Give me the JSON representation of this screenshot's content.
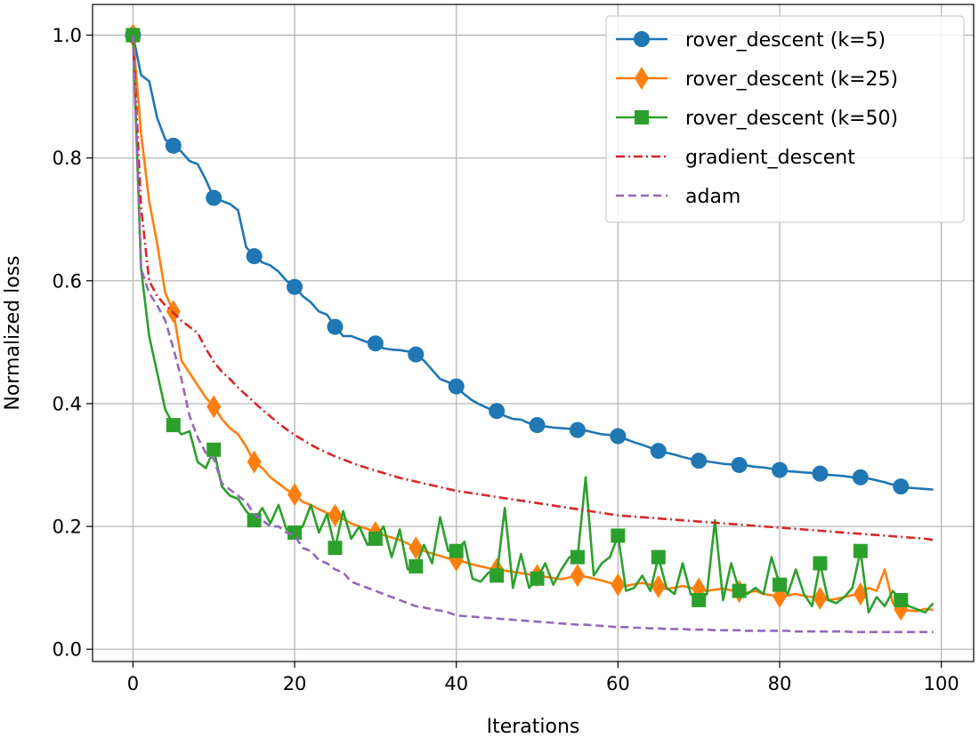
{
  "chart_data": {
    "type": "line",
    "title": "",
    "xlabel": "Iterations",
    "ylabel": "Normalized loss",
    "xlim": [
      -5,
      104
    ],
    "ylim": [
      -0.02,
      1.05
    ],
    "xticks": [
      0,
      20,
      40,
      60,
      80,
      100
    ],
    "yticks": [
      0.0,
      0.2,
      0.4,
      0.6,
      0.8,
      1.0
    ],
    "xtick_labels": [
      "0",
      "20",
      "40",
      "60",
      "80",
      "100"
    ],
    "ytick_labels": [
      "0.0",
      "0.2",
      "0.4",
      "0.6",
      "0.8",
      "1.0"
    ],
    "grid": true,
    "legend_position": "top-right",
    "series": [
      {
        "name": "rover_descent (k=5)",
        "color": "#1f77b4",
        "line_style": "solid",
        "marker": "circle",
        "markevery": 5,
        "x": [
          0,
          1,
          2,
          3,
          4,
          5,
          6,
          7,
          8,
          9,
          10,
          11,
          12,
          13,
          14,
          15,
          16,
          17,
          18,
          19,
          20,
          21,
          22,
          23,
          24,
          25,
          26,
          27,
          28,
          29,
          30,
          31,
          32,
          33,
          34,
          35,
          36,
          37,
          38,
          39,
          40,
          41,
          42,
          43,
          44,
          45,
          46,
          47,
          48,
          49,
          50,
          51,
          52,
          53,
          54,
          55,
          56,
          57,
          58,
          59,
          60,
          61,
          62,
          63,
          64,
          65,
          66,
          67,
          68,
          69,
          70,
          71,
          72,
          73,
          74,
          75,
          76,
          77,
          78,
          79,
          80,
          81,
          82,
          83,
          84,
          85,
          86,
          87,
          88,
          89,
          90,
          91,
          92,
          93,
          94,
          95,
          96,
          97,
          98,
          99
        ],
        "y": [
          1.0,
          0.935,
          0.925,
          0.865,
          0.83,
          0.82,
          0.81,
          0.795,
          0.79,
          0.765,
          0.735,
          0.73,
          0.725,
          0.715,
          0.655,
          0.64,
          0.63,
          0.625,
          0.615,
          0.6,
          0.59,
          0.575,
          0.565,
          0.55,
          0.545,
          0.525,
          0.51,
          0.51,
          0.505,
          0.5,
          0.498,
          0.49,
          0.488,
          0.487,
          0.485,
          0.48,
          0.47,
          0.455,
          0.44,
          0.435,
          0.428,
          0.415,
          0.405,
          0.398,
          0.392,
          0.388,
          0.38,
          0.375,
          0.374,
          0.368,
          0.365,
          0.363,
          0.361,
          0.36,
          0.359,
          0.357,
          0.356,
          0.353,
          0.35,
          0.349,
          0.347,
          0.342,
          0.337,
          0.333,
          0.328,
          0.323,
          0.32,
          0.317,
          0.313,
          0.31,
          0.307,
          0.306,
          0.304,
          0.302,
          0.301,
          0.3,
          0.299,
          0.297,
          0.296,
          0.294,
          0.292,
          0.29,
          0.289,
          0.288,
          0.287,
          0.286,
          0.284,
          0.283,
          0.282,
          0.28,
          0.28,
          0.278,
          0.275,
          0.272,
          0.268,
          0.265,
          0.263,
          0.262,
          0.261,
          0.26
        ]
      },
      {
        "name": "rover_descent (k=25)",
        "color": "#ff7f0e",
        "line_style": "solid",
        "marker": "diamond",
        "markevery": 5,
        "x": [
          0,
          1,
          2,
          3,
          4,
          5,
          6,
          7,
          8,
          9,
          10,
          11,
          12,
          13,
          14,
          15,
          16,
          17,
          18,
          19,
          20,
          21,
          22,
          23,
          24,
          25,
          26,
          27,
          28,
          29,
          30,
          31,
          32,
          33,
          34,
          35,
          36,
          37,
          38,
          39,
          40,
          41,
          42,
          43,
          44,
          45,
          46,
          47,
          48,
          49,
          50,
          51,
          52,
          53,
          54,
          55,
          56,
          57,
          58,
          59,
          60,
          61,
          62,
          63,
          64,
          65,
          66,
          67,
          68,
          69,
          70,
          71,
          72,
          73,
          74,
          75,
          76,
          77,
          78,
          79,
          80,
          81,
          82,
          83,
          84,
          85,
          86,
          87,
          88,
          89,
          90,
          91,
          92,
          93,
          94,
          95,
          96,
          97,
          98,
          99
        ],
        "y": [
          1.0,
          0.84,
          0.73,
          0.66,
          0.58,
          0.55,
          0.47,
          0.45,
          0.43,
          0.41,
          0.395,
          0.375,
          0.36,
          0.35,
          0.33,
          0.305,
          0.295,
          0.28,
          0.27,
          0.26,
          0.252,
          0.24,
          0.235,
          0.228,
          0.222,
          0.218,
          0.212,
          0.205,
          0.2,
          0.196,
          0.19,
          0.186,
          0.182,
          0.178,
          0.172,
          0.165,
          0.16,
          0.156,
          0.152,
          0.148,
          0.145,
          0.142,
          0.138,
          0.135,
          0.132,
          0.13,
          0.128,
          0.126,
          0.124,
          0.122,
          0.12,
          0.118,
          0.116,
          0.114,
          0.117,
          0.12,
          0.118,
          0.115,
          0.112,
          0.108,
          0.105,
          0.103,
          0.106,
          0.108,
          0.105,
          0.102,
          0.098,
          0.1,
          0.103,
          0.1,
          0.098,
          0.095,
          0.097,
          0.099,
          0.096,
          0.094,
          0.092,
          0.095,
          0.09,
          0.088,
          0.086,
          0.088,
          0.09,
          0.087,
          0.085,
          0.083,
          0.08,
          0.082,
          0.085,
          0.088,
          0.09,
          0.1,
          0.095,
          0.13,
          0.075,
          0.065,
          0.063,
          0.062,
          0.066,
          0.064
        ]
      },
      {
        "name": "rover_descent (k=50)",
        "color": "#2ca02c",
        "line_style": "solid",
        "marker": "square",
        "markevery": 5,
        "x": [
          0,
          1,
          2,
          3,
          4,
          5,
          6,
          7,
          8,
          9,
          10,
          11,
          12,
          13,
          14,
          15,
          16,
          17,
          18,
          19,
          20,
          21,
          22,
          23,
          24,
          25,
          26,
          27,
          28,
          29,
          30,
          31,
          32,
          33,
          34,
          35,
          36,
          37,
          38,
          39,
          40,
          41,
          42,
          43,
          44,
          45,
          46,
          47,
          48,
          49,
          50,
          51,
          52,
          53,
          54,
          55,
          56,
          57,
          58,
          59,
          60,
          61,
          62,
          63,
          64,
          65,
          66,
          67,
          68,
          69,
          70,
          71,
          72,
          73,
          74,
          75,
          76,
          77,
          78,
          79,
          80,
          81,
          82,
          83,
          84,
          85,
          86,
          87,
          88,
          89,
          90,
          91,
          92,
          93,
          94,
          95,
          96,
          97,
          98,
          99
        ],
        "y": [
          1.0,
          0.62,
          0.51,
          0.45,
          0.39,
          0.365,
          0.35,
          0.355,
          0.305,
          0.295,
          0.325,
          0.265,
          0.25,
          0.245,
          0.225,
          0.21,
          0.23,
          0.205,
          0.235,
          0.195,
          0.19,
          0.2,
          0.235,
          0.19,
          0.22,
          0.165,
          0.225,
          0.18,
          0.2,
          0.17,
          0.18,
          0.2,
          0.15,
          0.195,
          0.13,
          0.135,
          0.17,
          0.14,
          0.215,
          0.16,
          0.16,
          0.175,
          0.115,
          0.11,
          0.125,
          0.12,
          0.23,
          0.1,
          0.155,
          0.1,
          0.115,
          0.14,
          0.105,
          0.13,
          0.15,
          0.15,
          0.28,
          0.12,
          0.14,
          0.15,
          0.185,
          0.095,
          0.1,
          0.12,
          0.095,
          0.15,
          0.1,
          0.09,
          0.14,
          0.09,
          0.08,
          0.09,
          0.21,
          0.08,
          0.14,
          0.095,
          0.09,
          0.1,
          0.09,
          0.15,
          0.105,
          0.09,
          0.13,
          0.09,
          0.07,
          0.14,
          0.08,
          0.075,
          0.085,
          0.1,
          0.16,
          0.06,
          0.085,
          0.07,
          0.095,
          0.08,
          0.07,
          0.065,
          0.06,
          0.075
        ]
      },
      {
        "name": "gradient_descent",
        "color": "#d62728",
        "line_style": "dashdot",
        "marker": "none",
        "x": [
          0,
          1,
          2,
          3,
          4,
          5,
          6,
          7,
          8,
          9,
          10,
          11,
          12,
          13,
          14,
          15,
          16,
          17,
          18,
          19,
          20,
          21,
          22,
          23,
          24,
          25,
          26,
          27,
          28,
          29,
          30,
          31,
          32,
          33,
          34,
          35,
          36,
          37,
          38,
          39,
          40,
          41,
          42,
          43,
          44,
          45,
          46,
          47,
          48,
          49,
          50,
          51,
          52,
          53,
          54,
          55,
          56,
          57,
          58,
          59,
          60,
          61,
          62,
          63,
          64,
          65,
          66,
          67,
          68,
          69,
          70,
          71,
          72,
          73,
          74,
          75,
          76,
          77,
          78,
          79,
          80,
          81,
          82,
          83,
          84,
          85,
          86,
          87,
          88,
          89,
          90,
          91,
          92,
          93,
          94,
          95,
          96,
          97,
          98,
          99
        ],
        "y": [
          1.0,
          0.72,
          0.6,
          0.575,
          0.56,
          0.548,
          0.535,
          0.525,
          0.515,
          0.49,
          0.468,
          0.452,
          0.44,
          0.426,
          0.414,
          0.402,
          0.39,
          0.379,
          0.368,
          0.358,
          0.349,
          0.341,
          0.333,
          0.326,
          0.32,
          0.314,
          0.309,
          0.304,
          0.299,
          0.295,
          0.291,
          0.287,
          0.283,
          0.279,
          0.276,
          0.273,
          0.27,
          0.267,
          0.264,
          0.261,
          0.258,
          0.256,
          0.254,
          0.252,
          0.25,
          0.248,
          0.246,
          0.244,
          0.242,
          0.24,
          0.238,
          0.236,
          0.234,
          0.232,
          0.23,
          0.228,
          0.226,
          0.224,
          0.222,
          0.22,
          0.218,
          0.217,
          0.216,
          0.215,
          0.214,
          0.213,
          0.212,
          0.211,
          0.21,
          0.209,
          0.208,
          0.207,
          0.206,
          0.205,
          0.204,
          0.203,
          0.202,
          0.201,
          0.2,
          0.199,
          0.198,
          0.197,
          0.196,
          0.195,
          0.194,
          0.193,
          0.192,
          0.191,
          0.19,
          0.189,
          0.188,
          0.187,
          0.186,
          0.185,
          0.184,
          0.183,
          0.182,
          0.181,
          0.18,
          0.178
        ]
      },
      {
        "name": "adam",
        "color": "#9467bd",
        "line_style": "dashed",
        "marker": "none",
        "x": [
          0,
          1,
          2,
          3,
          4,
          5,
          6,
          7,
          8,
          9,
          10,
          11,
          12,
          13,
          14,
          15,
          16,
          17,
          18,
          19,
          20,
          21,
          22,
          23,
          24,
          25,
          26,
          27,
          28,
          29,
          30,
          31,
          32,
          33,
          34,
          35,
          36,
          37,
          38,
          39,
          40,
          41,
          42,
          43,
          44,
          45,
          46,
          47,
          48,
          49,
          50,
          51,
          52,
          53,
          54,
          55,
          56,
          57,
          58,
          59,
          60,
          61,
          62,
          63,
          64,
          65,
          66,
          67,
          68,
          69,
          70,
          71,
          72,
          73,
          74,
          75,
          76,
          77,
          78,
          79,
          80,
          81,
          82,
          83,
          84,
          85,
          86,
          87,
          88,
          89,
          90,
          91,
          92,
          93,
          94,
          95,
          96,
          97,
          98,
          99
        ],
        "y": [
          1.0,
          0.62,
          0.58,
          0.56,
          0.535,
          0.49,
          0.44,
          0.38,
          0.345,
          0.32,
          0.31,
          0.27,
          0.26,
          0.25,
          0.24,
          0.22,
          0.21,
          0.2,
          0.2,
          0.19,
          0.185,
          0.165,
          0.16,
          0.145,
          0.14,
          0.13,
          0.125,
          0.11,
          0.105,
          0.1,
          0.095,
          0.09,
          0.085,
          0.08,
          0.075,
          0.07,
          0.068,
          0.065,
          0.063,
          0.06,
          0.055,
          0.054,
          0.053,
          0.052,
          0.051,
          0.05,
          0.049,
          0.048,
          0.047,
          0.046,
          0.045,
          0.044,
          0.043,
          0.042,
          0.041,
          0.04,
          0.04,
          0.039,
          0.038,
          0.037,
          0.036,
          0.036,
          0.035,
          0.035,
          0.034,
          0.034,
          0.033,
          0.033,
          0.033,
          0.032,
          0.032,
          0.032,
          0.031,
          0.031,
          0.031,
          0.031,
          0.03,
          0.03,
          0.03,
          0.03,
          0.03,
          0.03,
          0.029,
          0.029,
          0.029,
          0.029,
          0.029,
          0.029,
          0.029,
          0.028,
          0.028,
          0.028,
          0.028,
          0.028,
          0.028,
          0.028,
          0.028,
          0.028,
          0.028,
          0.028
        ]
      }
    ]
  }
}
